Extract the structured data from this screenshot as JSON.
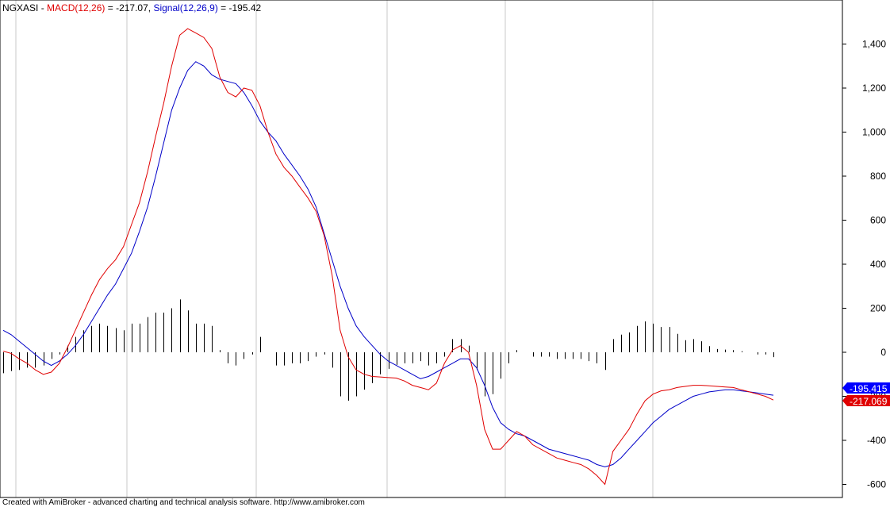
{
  "header": {
    "symbol": "NGXASI",
    "sep": " - ",
    "macd_label": "MACD(12,26)",
    "macd_eq": " = -217.07, ",
    "signal_label": "Signal(12,26,9)",
    "signal_eq": " = -195.42"
  },
  "footer": {
    "text": "Created with AmiBroker - advanced charting and technical analysis software. http://www.amibroker.com"
  },
  "tags": {
    "signal_value": "-195.415",
    "macd_value": "-217.069"
  },
  "colors": {
    "macd": "#e00000",
    "signal": "#0000c8",
    "histogram": "#000000",
    "grid": "#c8c8c8",
    "zero_line": "#000000",
    "signal_tag_bg": "#0000ff",
    "macd_tag_bg": "#e00000"
  },
  "chart_data": {
    "type": "line",
    "title": "NGXASI - MACD(12,26) = -217.07, Signal(12,26,9) = -195.42",
    "xlabel": "",
    "ylabel": "",
    "ylim": [
      -630,
      1500
    ],
    "yticks": [
      -600,
      -400,
      -200,
      0,
      200,
      400,
      600,
      800,
      1000,
      1200,
      1400
    ],
    "ytick_labels": [
      "-600",
      "-400",
      "-200",
      "0",
      "200",
      "400",
      "600",
      "800",
      "1,000",
      "1,200",
      "1,400"
    ],
    "grid": "vertical",
    "x": [
      0,
      1,
      2,
      3,
      4,
      5,
      6,
      7,
      8,
      9,
      10,
      11,
      12,
      13,
      14,
      15,
      16,
      17,
      18,
      19,
      20,
      21,
      22,
      23,
      24,
      25,
      26,
      27,
      28,
      29,
      30,
      31,
      32,
      33,
      34,
      35,
      36,
      37,
      38,
      39,
      40,
      41,
      42,
      43,
      44,
      45,
      46,
      47,
      48,
      49,
      50,
      51,
      52,
      53,
      54,
      55,
      56,
      57,
      58,
      59,
      60,
      61,
      62,
      63,
      64,
      65,
      66,
      67,
      68,
      69,
      70,
      71,
      72,
      73,
      74,
      75,
      76,
      77,
      78,
      79,
      80,
      81,
      82,
      83,
      84,
      85,
      86,
      87,
      88,
      89,
      90,
      91,
      92,
      93,
      94,
      95,
      96
    ],
    "series": [
      {
        "name": "MACD(12,26)",
        "values": [
          5,
          -5,
          -30,
          -50,
          -80,
          -100,
          -90,
          -50,
          20,
          100,
          180,
          260,
          330,
          380,
          420,
          480,
          580,
          680,
          820,
          980,
          1130,
          1300,
          1440,
          1470,
          1450,
          1430,
          1380,
          1250,
          1180,
          1160,
          1200,
          1190,
          1120,
          1000,
          900,
          840,
          800,
          750,
          700,
          640,
          530,
          350,
          100,
          -20,
          -80,
          -100,
          -110,
          -112,
          -115,
          -117,
          -130,
          -150,
          -160,
          -170,
          -140,
          -50,
          10,
          30,
          0,
          -150,
          -350,
          -440,
          -440,
          -400,
          -360,
          -380,
          -420,
          -440,
          -460,
          -480,
          -490,
          -500,
          -510,
          -530,
          -560,
          -600,
          -450,
          -400,
          -350,
          -280,
          -220,
          -190,
          -175,
          -170,
          -160,
          -155,
          -150,
          -150,
          -152,
          -155,
          -158,
          -160,
          -170,
          -180,
          -190,
          -200,
          -217
        ]
      },
      {
        "name": "Signal(12,26,9)",
        "values": [
          100,
          80,
          50,
          20,
          -10,
          -40,
          -60,
          -40,
          -10,
          30,
          80,
          140,
          200,
          260,
          310,
          380,
          450,
          550,
          660,
          800,
          950,
          1100,
          1200,
          1280,
          1320,
          1300,
          1260,
          1240,
          1230,
          1220,
          1180,
          1120,
          1050,
          1000,
          960,
          900,
          850,
          800,
          740,
          660,
          540,
          420,
          300,
          200,
          120,
          70,
          30,
          -10,
          -40,
          -60,
          -80,
          -100,
          -120,
          -110,
          -90,
          -70,
          -50,
          -30,
          -30,
          -70,
          -150,
          -250,
          -320,
          -350,
          -370,
          -380,
          -400,
          -420,
          -440,
          -450,
          -460,
          -470,
          -480,
          -490,
          -510,
          -520,
          -510,
          -480,
          -440,
          -400,
          -360,
          -320,
          -290,
          -260,
          -240,
          -220,
          -200,
          -190,
          -180,
          -175,
          -170,
          -170,
          -175,
          -180,
          -185,
          -190,
          -195
        ]
      },
      {
        "name": "Histogram",
        "values": [
          -95,
          -85,
          -80,
          -70,
          -70,
          -60,
          -30,
          -10,
          30,
          70,
          100,
          120,
          130,
          120,
          110,
          100,
          130,
          130,
          160,
          180,
          180,
          200,
          240,
          190,
          130,
          130,
          120,
          10,
          -50,
          -60,
          -30,
          -10,
          70,
          0,
          -60,
          -60,
          -50,
          -50,
          -40,
          -20,
          -10,
          -70,
          -200,
          -220,
          -200,
          -170,
          -140,
          -100,
          -75,
          -57,
          -50,
          -50,
          -40,
          -60,
          -50,
          -20,
          60,
          60,
          30,
          -80,
          -200,
          -190,
          -120,
          -50,
          10,
          0,
          -20,
          -20,
          -20,
          -30,
          -30,
          -30,
          -30,
          -40,
          -50,
          -80,
          60,
          80,
          90,
          120,
          140,
          130,
          115,
          115,
          84,
          55,
          60,
          50,
          28,
          15,
          12,
          10,
          5,
          0,
          -10,
          -10,
          -22
        ]
      }
    ]
  }
}
